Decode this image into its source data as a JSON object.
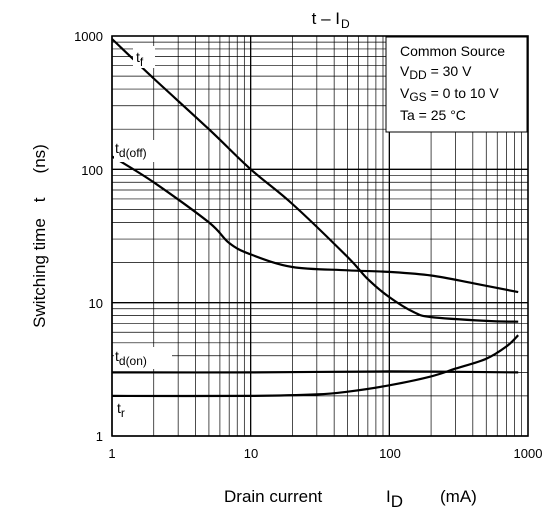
{
  "chart_data": {
    "type": "line",
    "title": "t – I",
    "title_sub": "D",
    "xlabel": "Drain current",
    "xlabel_symbol": "I",
    "xlabel_symbol_sub": "D",
    "xlabel_unit": "(mA)",
    "ylabel": "Switching time",
    "ylabel_symbol": "t",
    "ylabel_unit": "(ns)",
    "x_scale": "log",
    "y_scale": "log",
    "xlim": [
      1,
      1000
    ],
    "ylim": [
      1,
      1000
    ],
    "grid": true,
    "x_ticks": [
      "1",
      "10",
      "100",
      "1000"
    ],
    "y_ticks": [
      "1",
      "10",
      "100",
      "1000"
    ],
    "legend": {
      "placement": "top-right",
      "lines": [
        {
          "text": "Common Source"
        },
        {
          "text": "V",
          "sub": "DD",
          "rest": " = 30 V"
        },
        {
          "text": "V",
          "sub": "GS",
          "rest": " = 0 to 10 V"
        },
        {
          "text": "Ta = 25 °C"
        }
      ]
    },
    "series": [
      {
        "name": "tf",
        "label_main": "t",
        "label_sub": "f",
        "points": [
          [
            1,
            950
          ],
          [
            2,
            480
          ],
          [
            5,
            200
          ],
          [
            10,
            100
          ],
          [
            20,
            55
          ],
          [
            50,
            22
          ],
          [
            70,
            15
          ],
          [
            100,
            11
          ],
          [
            150,
            8.5
          ],
          [
            200,
            7.8
          ],
          [
            500,
            7.3
          ],
          [
            850,
            7.2
          ]
        ]
      },
      {
        "name": "td(off)",
        "label_main": "t",
        "label_sub": "d(off)",
        "points": [
          [
            1,
            125
          ],
          [
            2,
            80
          ],
          [
            5,
            40
          ],
          [
            7,
            28
          ],
          [
            10,
            23
          ],
          [
            20,
            18.5
          ],
          [
            50,
            17.5
          ],
          [
            100,
            17
          ],
          [
            200,
            16
          ],
          [
            400,
            14
          ],
          [
            850,
            12
          ]
        ]
      },
      {
        "name": "td(on)",
        "label_main": "t",
        "label_sub": "d(on)",
        "points": [
          [
            1,
            3
          ],
          [
            10,
            3
          ],
          [
            100,
            3.05
          ],
          [
            850,
            3
          ]
        ]
      },
      {
        "name": "tr",
        "label_main": "t",
        "label_sub": "r",
        "points": [
          [
            1,
            2
          ],
          [
            10,
            2
          ],
          [
            30,
            2.05
          ],
          [
            50,
            2.15
          ],
          [
            100,
            2.4
          ],
          [
            200,
            2.8
          ],
          [
            300,
            3.2
          ],
          [
            500,
            3.8
          ],
          [
            700,
            4.7
          ],
          [
            850,
            5.7
          ]
        ]
      }
    ]
  }
}
